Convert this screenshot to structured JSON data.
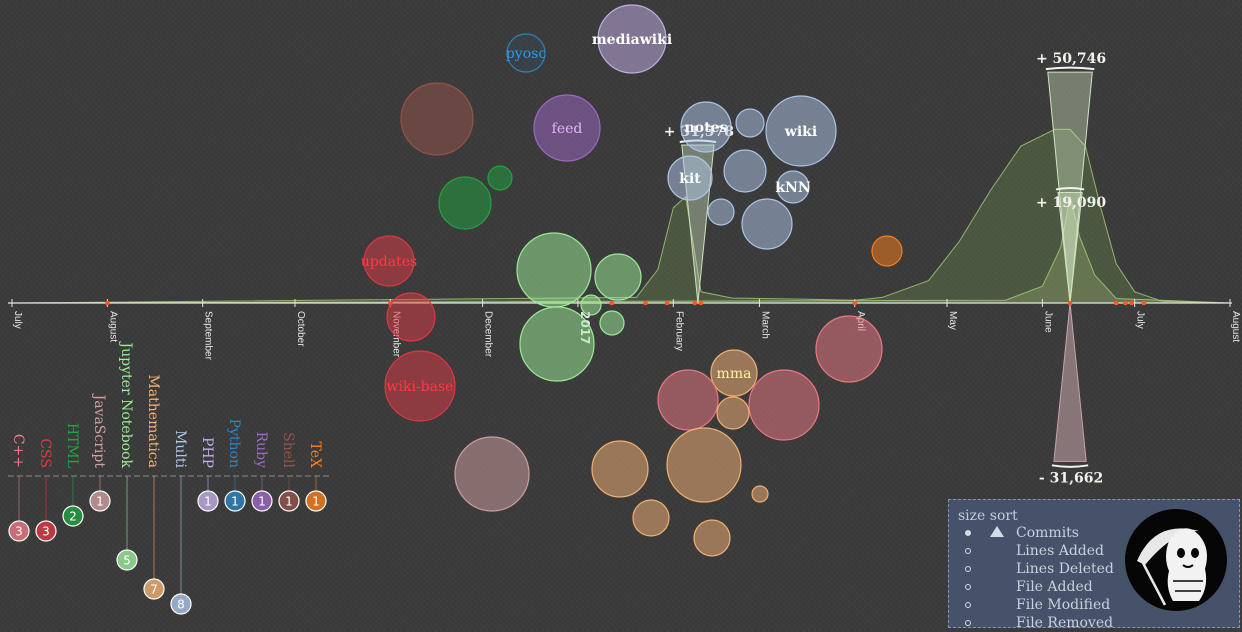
{
  "colors": {
    "axis": "#e6e6e6",
    "tick_label": "#e6e6e6",
    "language_axis": "#8a8a8a",
    "annotation_text": "#f3f3ee",
    "area_stroke": "#a8cf7a",
    "positive_wedge": "#d0e3c0",
    "negative_wedge": "#c7a6ab",
    "event_marker": "#ff5a1a"
  },
  "languages": [
    {
      "name": "C++",
      "count": "3",
      "color": "#f07a85"
    },
    {
      "name": "CSS",
      "count": "3",
      "color": "#e03945"
    },
    {
      "name": "HTML",
      "count": "2",
      "color": "#21a540"
    },
    {
      "name": "JavaScript",
      "count": "1",
      "color": "#d2a2a1"
    },
    {
      "name": "Jupyter Notebook",
      "count": "5",
      "color": "#9ff09a"
    },
    {
      "name": "Mathematica",
      "count": "7",
      "color": "#f7b476"
    },
    {
      "name": "Multi",
      "count": "8",
      "color": "#afc8ea"
    },
    {
      "name": "PHP",
      "count": "1",
      "color": "#c6b0ea"
    },
    {
      "name": "Python",
      "count": "1",
      "color": "#2a86c6"
    },
    {
      "name": "Ruby",
      "count": "1",
      "color": "#a069c8"
    },
    {
      "name": "Shell",
      "count": "1",
      "color": "#97534a"
    },
    {
      "name": "TeX",
      "count": "1",
      "color": "#ff7f1a"
    }
  ],
  "chart_data": {
    "type": "area",
    "x_range": [
      "2016-07-01",
      "2017-08-01"
    ],
    "tick_labels": [
      "July",
      "August",
      "September",
      "October",
      "November",
      "December",
      "2017",
      "February",
      "March",
      "April",
      "May",
      "June",
      "July",
      "August"
    ],
    "series": [
      {
        "values": [
          [
            "2016-07-01",
            0
          ],
          [
            "2017-01-20",
            1000
          ],
          [
            "2017-01-27",
            6000
          ],
          [
            "2017-02-01",
            17000
          ],
          [
            "2017-02-05",
            19000
          ],
          [
            "2017-02-10",
            2000
          ],
          [
            "2017-02-20",
            900
          ],
          [
            "2017-03-15",
            700
          ],
          [
            "2017-04-01",
            500
          ],
          [
            "2017-04-10",
            1000
          ],
          [
            "2017-04-25",
            4000
          ],
          [
            "2017-05-05",
            11000
          ],
          [
            "2017-05-15",
            20000
          ],
          [
            "2017-05-25",
            28000
          ],
          [
            "2017-06-05",
            31000
          ],
          [
            "2017-06-10",
            31000
          ],
          [
            "2017-06-15",
            28000
          ],
          [
            "2017-06-20",
            17000
          ],
          [
            "2017-06-25",
            7000
          ],
          [
            "2017-07-01",
            2000
          ],
          [
            "2017-07-10",
            300
          ],
          [
            "2017-08-01",
            0
          ]
        ]
      },
      {
        "values": [
          [
            "2016-07-01",
            0
          ],
          [
            "2017-05-20",
            500
          ],
          [
            "2017-06-01",
            3000
          ],
          [
            "2017-06-07",
            10000
          ],
          [
            "2017-06-10",
            19090
          ],
          [
            "2017-06-13",
            12000
          ],
          [
            "2017-06-18",
            5000
          ],
          [
            "2017-06-25",
            800
          ],
          [
            "2017-08-01",
            0
          ]
        ]
      }
    ],
    "annotations": [
      {
        "label": "+ 31,578",
        "date": "2017-02-09",
        "value": 31578,
        "sign": "positive"
      },
      {
        "label": "+ 50,746",
        "date": "2017-06-10",
        "value": 50746,
        "sign": "positive"
      },
      {
        "label": "+ 19,090",
        "date": "2017-06-10",
        "value": 19090,
        "sign": "positive"
      },
      {
        "label": "- 31,662",
        "date": "2017-06-10",
        "value": -31662,
        "sign": "negative"
      }
    ],
    "events": [
      "2016-08-01",
      "2016-11-01",
      "2017-01-12",
      "2017-01-23",
      "2017-01-30",
      "2017-02-08",
      "2017-02-10",
      "2017-04-01",
      "2017-06-10",
      "2017-06-25",
      "2017-06-28",
      "2017-06-30",
      "2017-07-04"
    ],
    "bubbles": [
      {
        "label": "pyosc",
        "lang": "Python",
        "size": 19
      },
      {
        "label": "mediawiki",
        "lang": "PHP",
        "size": 34
      },
      {
        "label": "feed",
        "lang": "Ruby",
        "size": 33
      },
      {
        "label": "",
        "lang": "Shell",
        "size": 36
      },
      {
        "label": "",
        "lang": "HTML",
        "size": 26
      },
      {
        "label": "",
        "lang": "HTML",
        "size": 12
      },
      {
        "label": "updates",
        "lang": "CSS",
        "size": 25
      },
      {
        "label": "",
        "lang": "CSS",
        "size": 24
      },
      {
        "label": "wiki-base",
        "lang": "CSS",
        "size": 35
      },
      {
        "label": "",
        "lang": "Jupyter Notebook",
        "size": 37
      },
      {
        "label": "",
        "lang": "Jupyter Notebook",
        "size": 23
      },
      {
        "label": "",
        "lang": "Jupyter Notebook",
        "size": 37
      },
      {
        "label": "",
        "lang": "Jupyter Notebook",
        "size": 10
      },
      {
        "label": "",
        "lang": "Jupyter Notebook",
        "size": 12
      },
      {
        "label": "notes",
        "lang": "Multi",
        "size": 25
      },
      {
        "label": "",
        "lang": "Multi",
        "size": 14
      },
      {
        "label": "wiki",
        "lang": "Multi",
        "size": 35
      },
      {
        "label": "",
        "lang": "Multi",
        "size": 21
      },
      {
        "label": "kit",
        "lang": "Multi",
        "size": 22
      },
      {
        "label": "kNN",
        "lang": "Multi",
        "size": 16
      },
      {
        "label": "",
        "lang": "Multi",
        "size": 13
      },
      {
        "label": "",
        "lang": "Multi",
        "size": 25
      },
      {
        "label": "",
        "lang": "TeX",
        "size": 15
      },
      {
        "label": "",
        "lang": "C++",
        "size": 33
      },
      {
        "label": "mma",
        "lang": "Mathematica",
        "size": 23
      },
      {
        "label": "",
        "lang": "C++",
        "size": 30
      },
      {
        "label": "",
        "lang": "C++",
        "size": 35
      },
      {
        "label": "",
        "lang": "Mathematica",
        "size": 16
      },
      {
        "label": "",
        "lang": "JavaScript",
        "size": 37
      },
      {
        "label": "",
        "lang": "Mathematica",
        "size": 28
      },
      {
        "label": "",
        "lang": "Mathematica",
        "size": 37
      },
      {
        "label": "",
        "lang": "Mathematica",
        "size": 8
      },
      {
        "label": "",
        "lang": "Mathematica",
        "size": 18
      },
      {
        "label": "",
        "lang": "Mathematica",
        "size": 18
      }
    ]
  },
  "controls": {
    "title": "size sort",
    "selected": "Commits",
    "options": [
      "Commits",
      "Lines Added",
      "Lines Deleted",
      "File Added",
      "File Modified",
      "File Removed"
    ]
  }
}
